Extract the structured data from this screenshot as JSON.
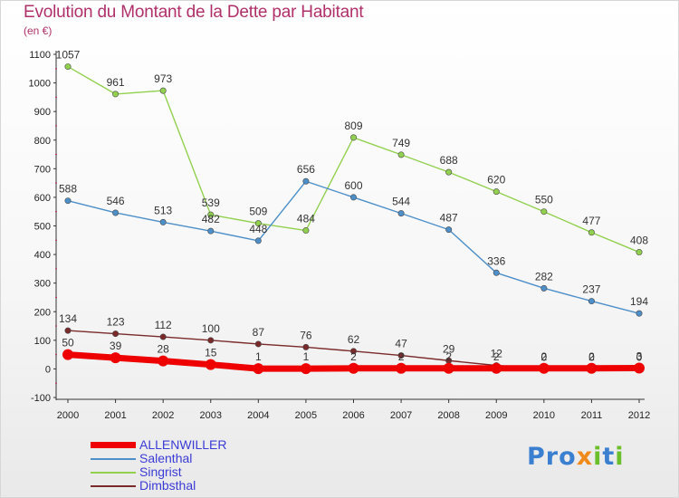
{
  "title": "Evolution du Montant de la Dette par Habitant",
  "subtitle": "(en €)",
  "logo": {
    "text": "Proxiti",
    "colors": [
      "#3a7fd0",
      "#f08a1c",
      "#6bbf2a"
    ]
  },
  "chart_data": {
    "type": "line",
    "title": "Evolution du Montant de la Dette par Habitant",
    "subtitle": "(en €)",
    "xlabel": "",
    "ylabel": "",
    "categories": [
      "2000",
      "2001",
      "2002",
      "2003",
      "2004",
      "2005",
      "2006",
      "2007",
      "2008",
      "2009",
      "2010",
      "2011",
      "2012"
    ],
    "yticks": [
      -100,
      0,
      100,
      200,
      300,
      400,
      500,
      600,
      700,
      800,
      900,
      1000,
      1100
    ],
    "ylim": [
      -100,
      1100
    ],
    "grid": false,
    "legend_position": "bottom-left",
    "series": [
      {
        "name": "ALLENWILLER",
        "color": "#ee0000",
        "values": [
          50,
          39,
          28,
          15,
          1,
          1,
          2,
          2,
          2,
          2,
          2,
          2,
          3
        ],
        "labels": [
          "50",
          "39",
          "28",
          "15",
          "1",
          "1",
          "2",
          "2",
          "2",
          "2",
          "2",
          "2",
          "3"
        ]
      },
      {
        "name": "Salenthal",
        "color": "#4d8fc9",
        "values": [
          588,
          546,
          513,
          482,
          448,
          656,
          600,
          544,
          487,
          336,
          282,
          237,
          194
        ],
        "labels": [
          "588",
          "546",
          "513",
          "482",
          "448",
          "656",
          "600",
          "544",
          "487",
          "336",
          "282",
          "237",
          "194"
        ]
      },
      {
        "name": "Singrist",
        "color": "#92d050",
        "values": [
          1057,
          961,
          973,
          539,
          509,
          484,
          809,
          749,
          688,
          620,
          550,
          477,
          408
        ],
        "labels": [
          "1057",
          "961",
          "973",
          "539",
          "509",
          "484",
          "809",
          "749",
          "688",
          "620",
          "550",
          "477",
          "408"
        ]
      },
      {
        "name": "Dimbsthal",
        "color": "#7a2a2a",
        "values": [
          134,
          123,
          112,
          100,
          87,
          76,
          62,
          47,
          29,
          12,
          0,
          0,
          0
        ],
        "labels": [
          "134",
          "123",
          "112",
          "100",
          "87",
          "76",
          "62",
          "47",
          "29",
          "12",
          "0",
          "0",
          "0"
        ]
      }
    ]
  }
}
